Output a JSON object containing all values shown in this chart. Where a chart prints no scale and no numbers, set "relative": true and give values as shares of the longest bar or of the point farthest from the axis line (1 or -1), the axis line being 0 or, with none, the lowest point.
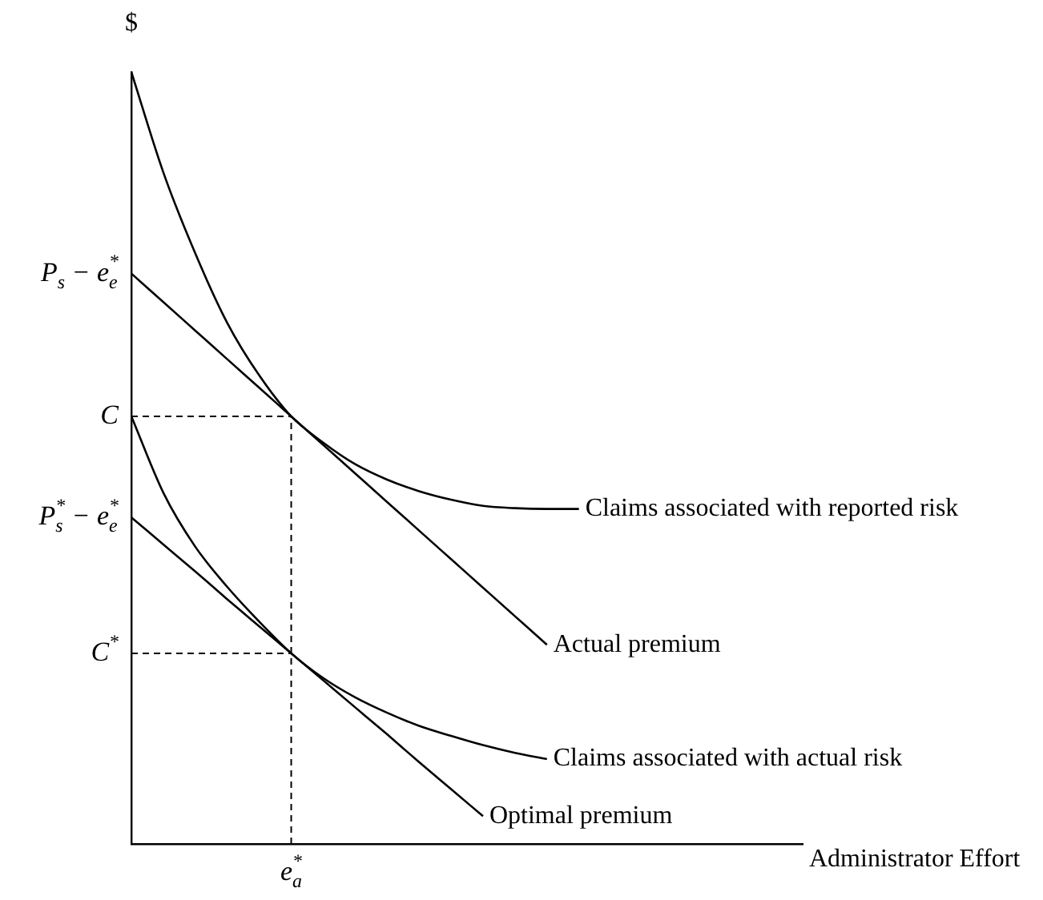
{
  "chart_data": {
    "type": "line",
    "relative": true,
    "ylabel": "$",
    "xlabel": "Administrator Effort",
    "marker": "none",
    "legend": false,
    "categories": [
      null,
      null,
      null,
      null,
      null,
      null,
      null,
      null,
      null,
      null,
      null,
      null,
      null,
      null,
      null,
      null,
      null,
      null,
      null,
      null,
      null,
      null
    ],
    "annotations": [
      "P$_{s}$ − e$_{e}$$^{*}$",
      "C",
      "P$_{s}$$^{*}$ − e$_{e}$$^{*}$",
      "C$^{*}$",
      "e$_{a}$$^{*}$"
    ],
    "series": [
      {
        "name": "Claims associated with reported risk",
        "color": "#000000",
        "values": [
          1,
          0.87,
          0.765,
          0.675,
          0.607,
          0.554,
          0.52,
          0.492,
          0.472,
          0.457,
          0.446,
          0.438,
          0.435,
          0.434,
          0.434,
          null,
          null,
          null,
          null,
          null,
          null,
          null
        ]
      },
      {
        "name": "Actual premium",
        "color": "#000000",
        "values": [
          0.739,
          0.702,
          0.665,
          0.628,
          0.591,
          0.554,
          0.517,
          0.48,
          0.443,
          0.406,
          0.369,
          0.332,
          0.295,
          0.258,
          null,
          null,
          null,
          null,
          null,
          null,
          null,
          null
        ]
      },
      {
        "name": "Claims associated with actual risk",
        "color": "#000000",
        "values": [
          0.554,
          0.455,
          0.385,
          0.333,
          0.288,
          0.247,
          0.215,
          0.19,
          0.17,
          0.153,
          0.14,
          0.128,
          0.118,
          0.11,
          null,
          null,
          null,
          null,
          null,
          null,
          null,
          null
        ]
      },
      {
        "name": "Optimal premium",
        "color": "#000000",
        "values": [
          0.423,
          0.388,
          0.353,
          0.317,
          0.282,
          0.247,
          0.212,
          0.177,
          0.142,
          0.106,
          0.071,
          0.036,
          null,
          null,
          null,
          null,
          null,
          null,
          null,
          null,
          null,
          null
        ]
      },
      {
        "color": "#000000",
        "line_style": "dashed",
        "values": [
          0.554,
          0.554,
          0.554,
          0.554,
          0.554,
          0.554,
          null,
          null,
          null,
          null,
          null,
          null,
          null,
          null,
          null,
          null,
          null,
          null,
          null,
          null,
          null,
          null
        ]
      },
      {
        "color": "#000000",
        "line_style": "dashed",
        "values": [
          0.247,
          0.247,
          0.247,
          0.247,
          0.247,
          0.247,
          null,
          null,
          null,
          null,
          null,
          null,
          null,
          null,
          null,
          null,
          null,
          null,
          null,
          null,
          null,
          null
        ]
      }
    ]
  }
}
